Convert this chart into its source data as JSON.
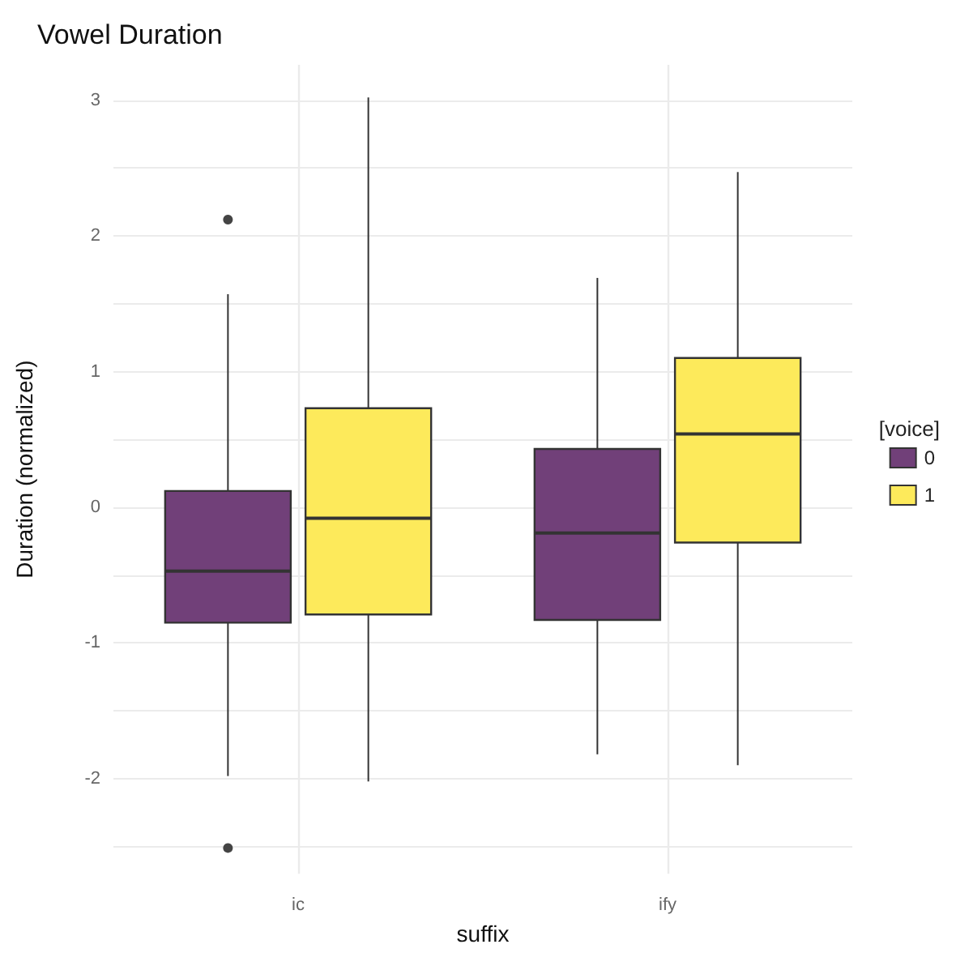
{
  "chart_data": {
    "type": "box",
    "title": "Vowel Duration",
    "xlabel": "suffix",
    "ylabel": "Duration (normalized)",
    "legend_title": "[voice]",
    "categories": [
      "ic",
      "ify"
    ],
    "series": [
      {
        "name": "0",
        "color": "#714079",
        "boxes": [
          {
            "low": -1.98,
            "q1": -0.85,
            "median": -0.47,
            "q3": 0.12,
            "high": 1.57,
            "outliers": [
              2.12,
              -2.51
            ]
          },
          {
            "low": -1.82,
            "q1": -0.83,
            "median": -0.19,
            "q3": 0.43,
            "high": 1.69
          }
        ]
      },
      {
        "name": "1",
        "color": "#fdea5b",
        "boxes": [
          {
            "low": -2.02,
            "q1": -0.79,
            "median": -0.08,
            "q3": 0.73,
            "high": 3.02
          },
          {
            "low": -1.9,
            "q1": -0.26,
            "median": 0.54,
            "q3": 1.1,
            "high": 2.47
          }
        ]
      }
    ],
    "ylim": [
      -2.7,
      3.26
    ],
    "yticks": [
      {
        "value": -2.5,
        "label": null
      },
      -2,
      {
        "value": -1.5,
        "label": null
      },
      -1,
      {
        "value": -0.5,
        "label": null
      },
      0,
      {
        "value": 0.5,
        "label": null
      },
      1,
      {
        "value": 1.5,
        "label": null
      },
      2,
      {
        "value": 2.5,
        "label": null
      },
      3
    ],
    "grid": true,
    "legend": "right"
  }
}
